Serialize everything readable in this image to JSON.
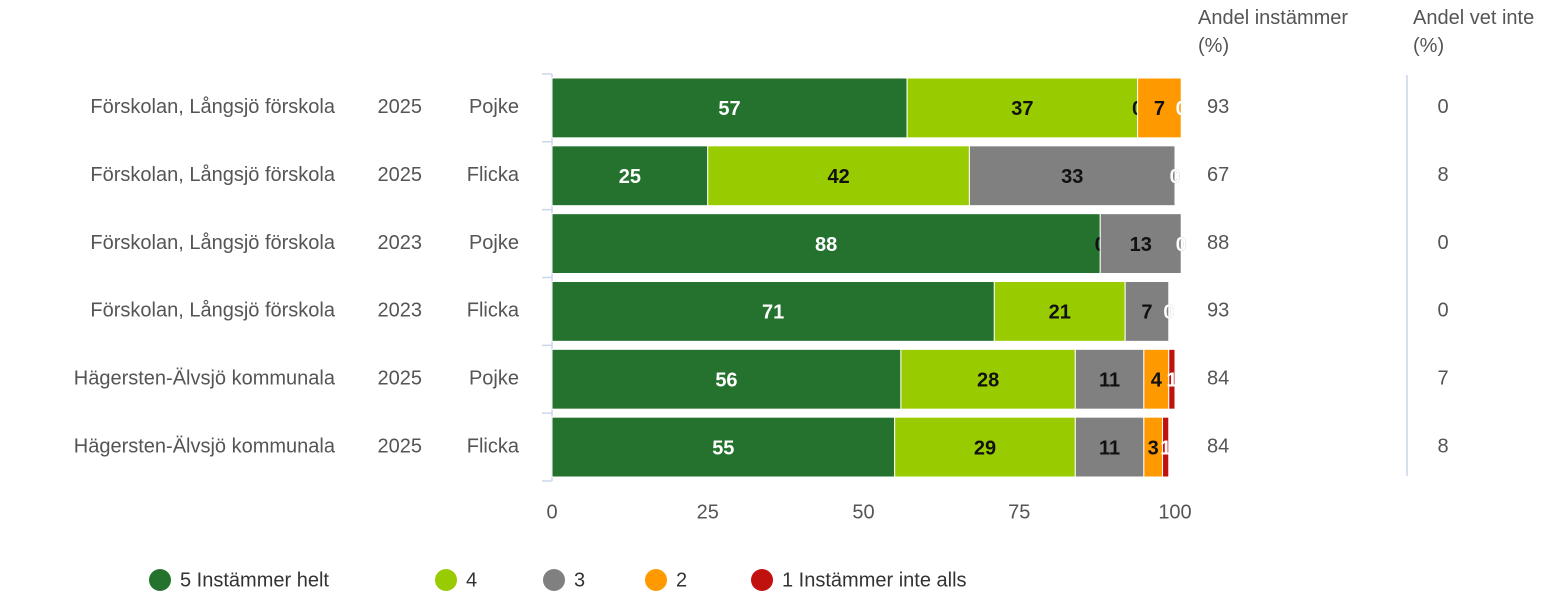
{
  "chart_data": {
    "type": "stacked-bar-horizontal",
    "categories": [
      [
        "Förskolan, Långsjö förskola",
        "2025",
        "Pojke"
      ],
      [
        "Förskolan, Långsjö förskola",
        "2025",
        "Flicka"
      ],
      [
        "Förskolan, Långsjö förskola",
        "2023",
        "Pojke"
      ],
      [
        "Förskolan, Långsjö förskola",
        "2023",
        "Flicka"
      ],
      [
        "Hägersten-Älvsjö kommunala",
        "2025",
        "Pojke"
      ],
      [
        "Hägersten-Älvsjö kommunala",
        "2025",
        "Flicka"
      ]
    ],
    "series": [
      {
        "name": "5 Instämmer helt",
        "color": "#25722e",
        "values": [
          57,
          25,
          88,
          71,
          56,
          55
        ]
      },
      {
        "name": "4",
        "color": "#99cc00",
        "values": [
          37,
          42,
          0,
          21,
          28,
          29
        ]
      },
      {
        "name": "3",
        "color": "#808080",
        "values": [
          0,
          33,
          13,
          7,
          11,
          11
        ]
      },
      {
        "name": "2",
        "color": "#ff9900",
        "values": [
          7,
          0,
          0,
          0,
          4,
          3
        ]
      },
      {
        "name": "1 Instämmer inte alls",
        "color": "#c0110f",
        "values": [
          0,
          0,
          0,
          0,
          1,
          1
        ]
      }
    ],
    "xlim": [
      0,
      100
    ],
    "xticks": [
      0,
      25,
      50,
      75,
      100
    ],
    "columns": [
      {
        "header": "Andel instämmer (%)",
        "values": [
          93,
          67,
          88,
          93,
          84,
          84
        ]
      },
      {
        "header": "Andel vet inte (%)",
        "values": [
          0,
          8,
          0,
          0,
          7,
          8
        ]
      }
    ]
  }
}
